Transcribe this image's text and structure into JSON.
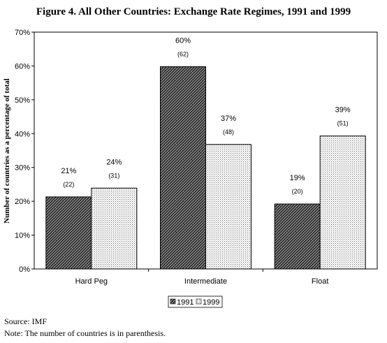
{
  "chart_data": {
    "type": "bar",
    "title": "Figure 4. All Other Countries: Exchange Rate Regimes, 1991 and 1999",
    "ylabel": "Number of countries as a percentage of total",
    "xlabel": "",
    "ylim": [
      0,
      70
    ],
    "yticks": [
      "0%",
      "10%",
      "20%",
      "30%",
      "40%",
      "50%",
      "60%",
      "70%"
    ],
    "categories": [
      "Hard Peg",
      "Intermediate",
      "Float"
    ],
    "series": [
      {
        "name": "1991",
        "values": [
          21.3,
          59.8,
          19.2
        ],
        "data_labels": [
          "21%",
          "60%",
          "19%"
        ],
        "count_labels": [
          "(22)",
          "(62)",
          "(20)"
        ],
        "pattern": "dark-diagonal"
      },
      {
        "name": "1999",
        "values": [
          23.9,
          36.8,
          39.3
        ],
        "data_labels": [
          "24%",
          "37%",
          "39%"
        ],
        "count_labels": [
          "(31)",
          "(48)",
          "(51)"
        ],
        "pattern": "light-dots"
      }
    ],
    "grid": false,
    "legend_position": "bottom-center"
  },
  "footer": {
    "source": "Source: IMF",
    "note": "Note: The number of countries is in parenthesis."
  }
}
